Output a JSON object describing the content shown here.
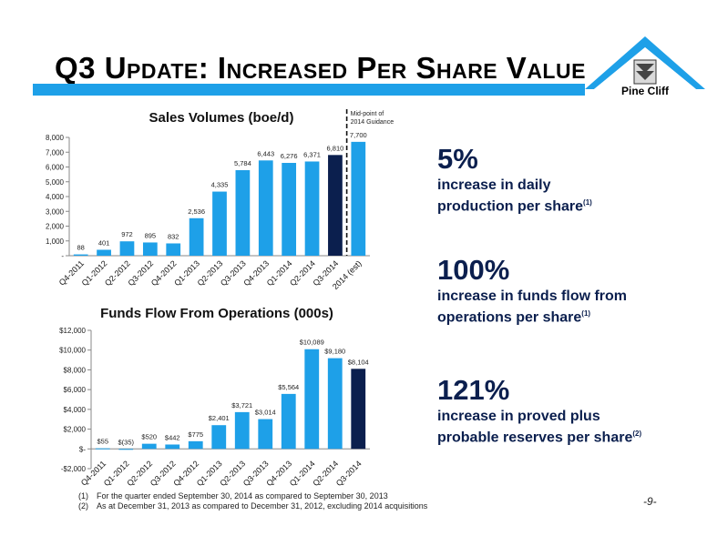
{
  "slide": {
    "title": "Q3 Update: Increased Per Share Value",
    "brand": "Pine Cliff",
    "page_number": "-9-"
  },
  "stats": [
    {
      "value": "5%",
      "line1": "increase in daily",
      "line2": "production per share",
      "note": "(1)"
    },
    {
      "value": "100%",
      "line1": "increase in funds flow from",
      "line2": "operations per share",
      "note": "(1)"
    },
    {
      "value": "121%",
      "line1": "increase in proved plus",
      "line2": "probable reserves per share",
      "note": "(2)"
    }
  ],
  "footnotes": [
    {
      "num": "(1)",
      "text": "For the quarter ended September 30, 2014 as compared to September 30, 2013"
    },
    {
      "num": "(2)",
      "text": "As at December 31, 2013 as compared to December 31, 2012, excluding 2014 acquisitions"
    }
  ],
  "colors": {
    "light_bar": "#1ea0e8",
    "dark_bar": "#0b1f4e",
    "accent": "#1ea0e8"
  },
  "chart_data": [
    {
      "type": "bar",
      "title": "Sales Volumes (boe/d)",
      "annotation": "Mid-point of 2014 Guidance",
      "categories": [
        "Q4-2011",
        "Q1-2012",
        "Q2-2012",
        "Q3-2012",
        "Q4-2012",
        "Q1-2013",
        "Q2-2013",
        "Q3-2013",
        "Q4-2013",
        "Q1-2014",
        "Q2-2014",
        "Q3-2014",
        "2014 (est)"
      ],
      "values": [
        88,
        401,
        972,
        895,
        832,
        2536,
        4335,
        5784,
        6443,
        6276,
        6371,
        6810,
        7700
      ],
      "data_labels": [
        "88",
        "401",
        "972",
        "895",
        "832",
        "2,536",
        "4,335",
        "5,784",
        "6,443",
        "6,276",
        "6,371",
        "6,810",
        "7,700"
      ],
      "ylim": [
        0,
        8000
      ],
      "yticks": [
        0,
        1000,
        2000,
        3000,
        4000,
        5000,
        6000,
        7000,
        8000
      ],
      "ytick_labels": [
        "-",
        "1,000",
        "2,000",
        "3,000",
        "4,000",
        "5,000",
        "6,000",
        "7,000",
        "8,000"
      ],
      "highlight_index": 11,
      "grid": false
    },
    {
      "type": "bar",
      "title": "Funds Flow From Operations (000s)",
      "categories": [
        "Q4-2011",
        "Q1-2012",
        "Q2-2012",
        "Q3-2012",
        "Q4-2012",
        "Q1-2013",
        "Q2-2013",
        "Q3-2013",
        "Q4-2013",
        "Q1-2014",
        "Q2-2014",
        "Q3-2014"
      ],
      "values": [
        55,
        -35,
        520,
        442,
        775,
        2401,
        3721,
        3014,
        5564,
        10089,
        9180,
        8104
      ],
      "data_labels": [
        "$55",
        "$(35)",
        "$520",
        "$442",
        "$775",
        "$2,401",
        "$3,721",
        "$3,014",
        "$5,564",
        "$10,089",
        "$9,180",
        "$8,104"
      ],
      "ylim": [
        -2000,
        12000
      ],
      "yticks": [
        -2000,
        0,
        2000,
        4000,
        6000,
        8000,
        10000,
        12000
      ],
      "ytick_labels": [
        "-$2,000",
        "$-",
        "$2,000",
        "$4,000",
        "$6,000",
        "$8,000",
        "$10,000",
        "$12,000"
      ],
      "highlight_index": 11,
      "grid": false
    }
  ]
}
